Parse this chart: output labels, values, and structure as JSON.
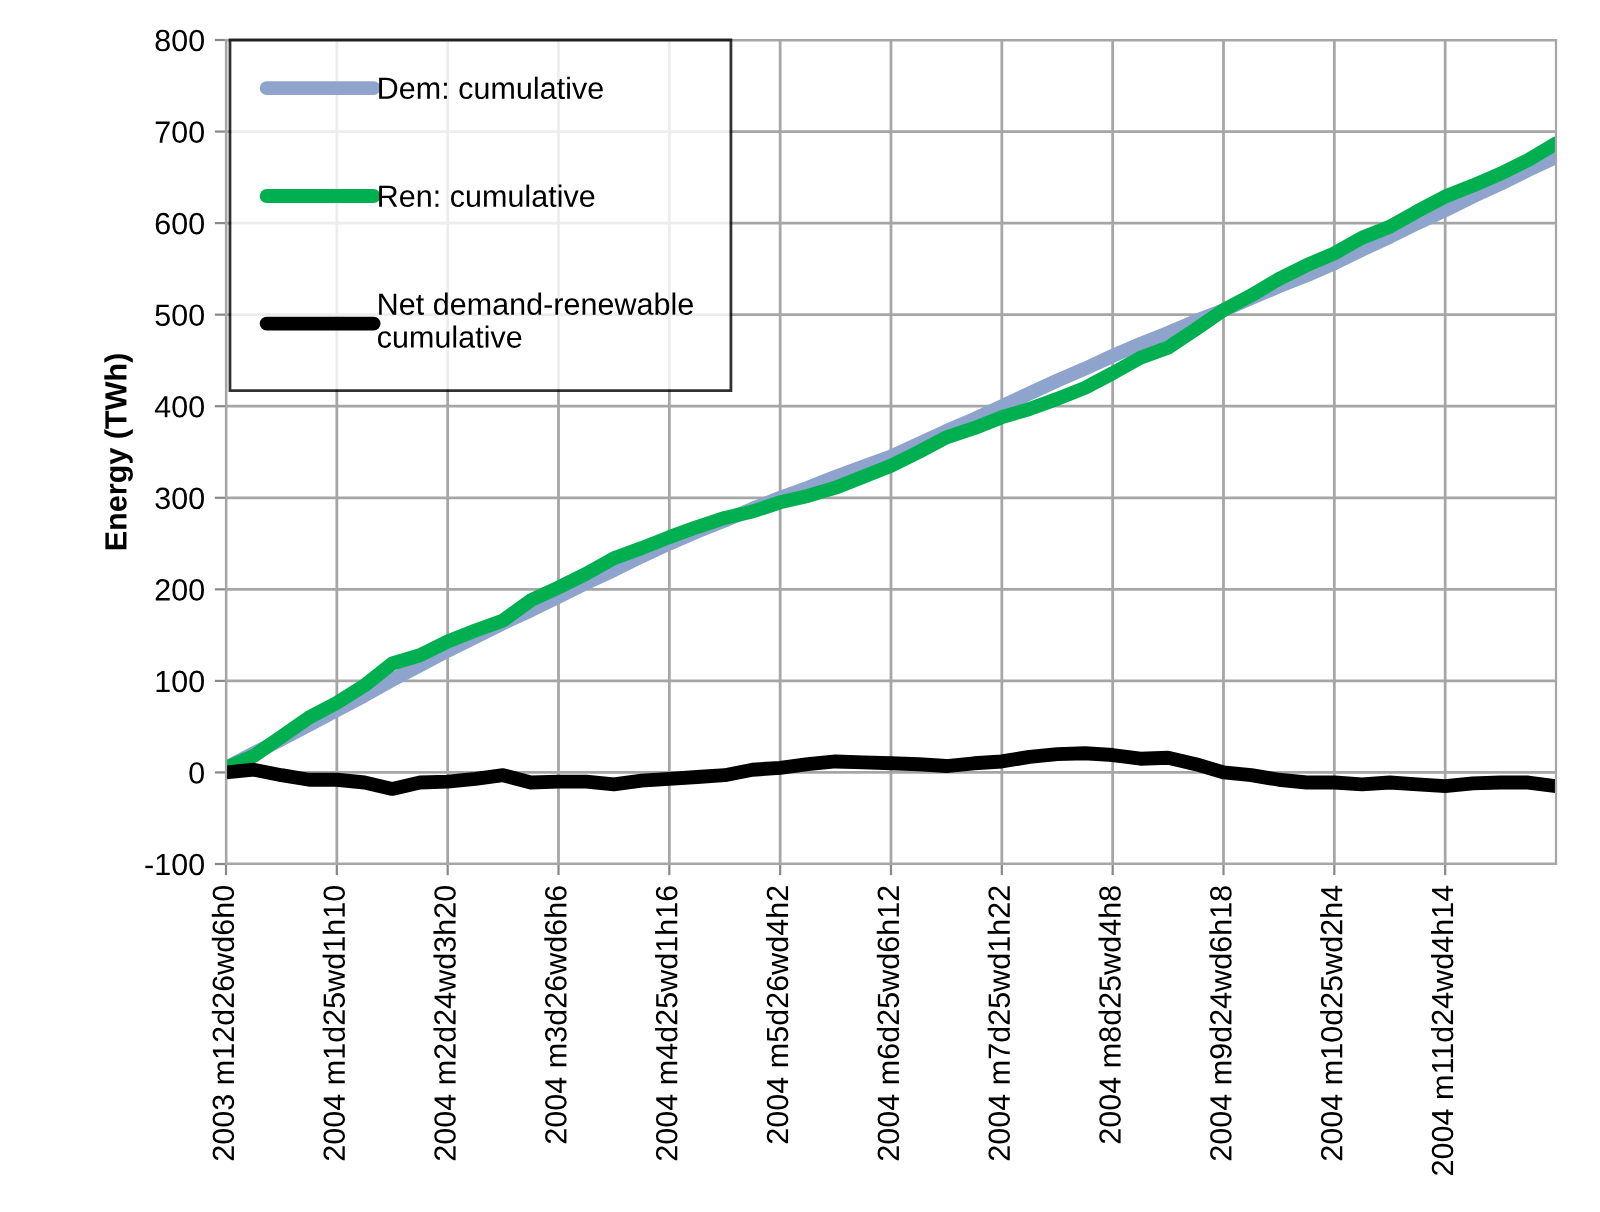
{
  "chart_data": {
    "type": "line",
    "ylabel": "Energy (TWh)",
    "categories": [
      "2003 m12d26wd6h0",
      null,
      null,
      null,
      "2004 m1d25wd1h10",
      null,
      null,
      null,
      "2004 m2d24wd3h20",
      null,
      null,
      null,
      "2004 m3d26wd6h6",
      null,
      null,
      null,
      "2004 m4d25wd1h16",
      null,
      null,
      null,
      "2004 m5d26wd4h2",
      null,
      null,
      null,
      "2004 m6d25wd6h12",
      null,
      null,
      null,
      "2004 m7d25wd1h22",
      null,
      null,
      null,
      "2004 m8d25wd4h8",
      null,
      null,
      null,
      "2004 m9d24wd6h18",
      null,
      null,
      null,
      "2004 m10d25wd2h4",
      null,
      null,
      null,
      "2004 m11d24wd4h14",
      null,
      null,
      null,
      null
    ],
    "series": [
      {
        "name": "Dem: cumulative",
        "color": "#8ea4cc",
        "values": [
          5,
          21,
          36,
          52,
          68,
          84,
          101,
          117,
          133,
          148,
          163,
          177,
          192,
          207,
          221,
          236,
          250,
          263,
          275,
          288,
          300,
          311,
          323,
          334,
          345,
          359,
          373,
          386,
          400,
          414,
          428,
          441,
          455,
          468,
          480,
          493,
          505,
          518,
          531,
          543,
          556,
          571,
          585,
          600,
          614,
          629,
          643,
          658,
          672
        ]
      },
      {
        "name": "Ren: cumulative",
        "color": "#00b050",
        "values": [
          5,
          18,
          39,
          60,
          76,
          95,
          119,
          128,
          143,
          155,
          166,
          188,
          202,
          217,
          234,
          245,
          257,
          268,
          278,
          285,
          295,
          302,
          311,
          323,
          335,
          350,
          366,
          376,
          388,
          397,
          408,
          420,
          436,
          453,
          464,
          484,
          505,
          521,
          539,
          554,
          567,
          584,
          596,
          613,
          629,
          641,
          654,
          669,
          687
        ]
      },
      {
        "name": "Net demand-renewable\ncumulative",
        "color": "#000000",
        "values": [
          0,
          3,
          -3,
          -8,
          -8,
          -11,
          -18,
          -11,
          -10,
          -7,
          -3,
          -11,
          -10,
          -10,
          -13,
          -9,
          -7,
          -5,
          -3,
          3,
          5,
          9,
          12,
          11,
          10,
          9,
          7,
          10,
          12,
          17,
          20,
          21,
          19,
          15,
          16,
          9,
          0,
          -3,
          -8,
          -11,
          -11,
          -13,
          -11,
          -13,
          -15,
          -12,
          -11,
          -11,
          -15
        ]
      }
    ],
    "ylim": [
      -100,
      800
    ],
    "yticks": [
      -100,
      0,
      100,
      200,
      300,
      400,
      500,
      600,
      700,
      800
    ],
    "grid": true,
    "legend": "top left",
    "marker": "none",
    "line_style": "solid"
  }
}
